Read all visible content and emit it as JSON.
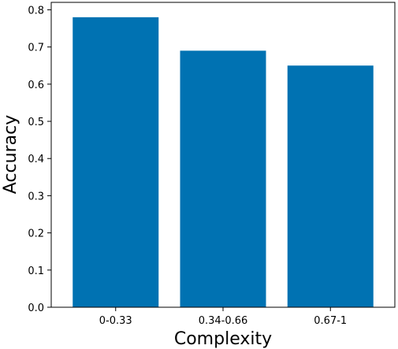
{
  "chart_data": {
    "type": "bar",
    "categories": [
      "0-0.33",
      "0.34-0.66",
      "0.67-1"
    ],
    "values": [
      0.78,
      0.69,
      0.65
    ],
    "xlabel": "Complexity",
    "ylabel": "Accuracy",
    "ylim": [
      0,
      0.82
    ],
    "yticks": [
      "0.0",
      "0.1",
      "0.2",
      "0.3",
      "0.4",
      "0.5",
      "0.6",
      "0.7",
      "0.8"
    ],
    "bar_color": "#0072b2",
    "grid": false,
    "legend": false
  }
}
